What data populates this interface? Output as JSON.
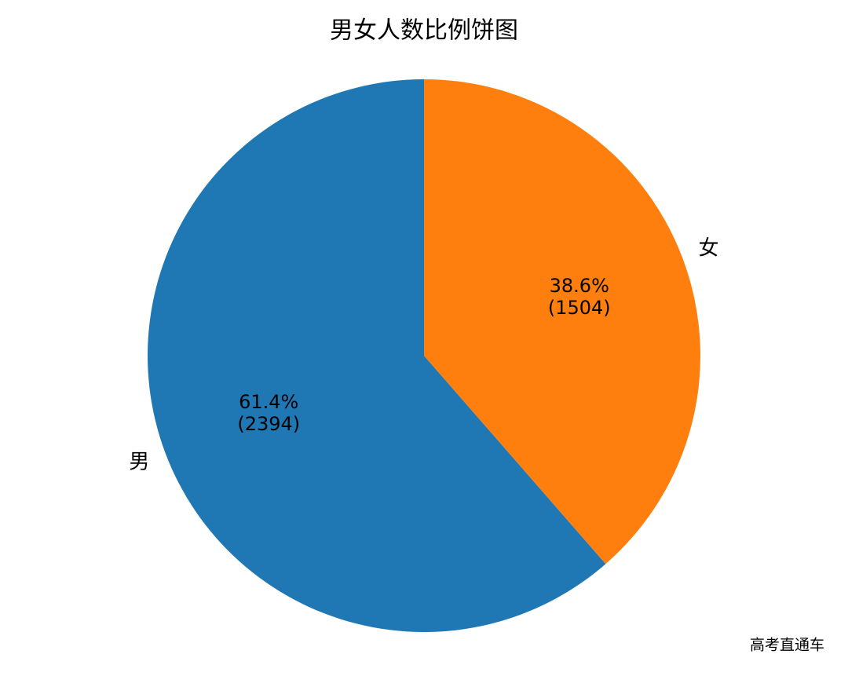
{
  "chart_data": {
    "type": "pie",
    "title": "男女人数比例饼图",
    "categories": [
      "男",
      "女"
    ],
    "values": [
      2394,
      1504
    ],
    "percent_labels": [
      "61.4%",
      "38.6%"
    ],
    "value_labels": [
      "(2394)",
      "(1504)"
    ],
    "colors": [
      "#1f77b4",
      "#ff7f0e"
    ],
    "start_angle": 90
  },
  "watermark": "高考直通车"
}
